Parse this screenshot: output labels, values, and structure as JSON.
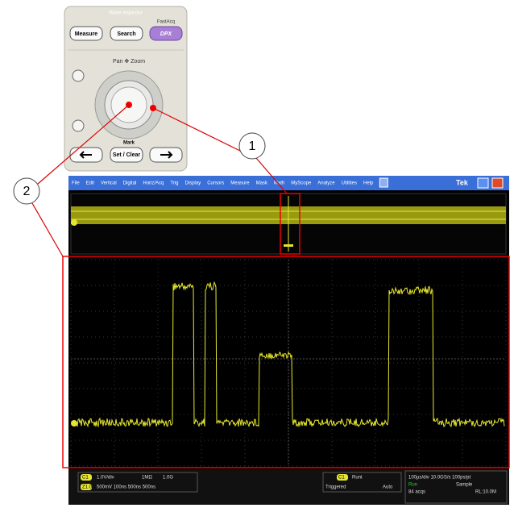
{
  "panel": {
    "title": "Wave Inspector",
    "fastacq": "FastAcq",
    "buttons": [
      "Measure",
      "Search",
      "DPX"
    ],
    "pan_zoom": "Pan ✥ Zoom",
    "mark": "Mark",
    "set_clear": "Set / Clear"
  },
  "callouts": [
    "1",
    "2"
  ],
  "menu": {
    "items": [
      "File",
      "Edit",
      "Vertical",
      "Digital",
      "Horiz/Acq",
      "Trig",
      "Display",
      "Cursors",
      "Measure",
      "Mask",
      "Math",
      "MyScope",
      "Analyze",
      "Utilities",
      "Help"
    ],
    "brand": "Tek"
  },
  "status": {
    "ch1": "C1",
    "ch1_scale": "1.0V/div",
    "ch1_imp": "1MΩ",
    "ch1_bw": "1.0G",
    "zoom": "Z1.0",
    "zoom_values": "500mV  100ns  500ns  500ns",
    "trig_ch": "C1",
    "trig_type": "Runt",
    "trig_state": "Triggered",
    "trig_mode": "Auto",
    "horiz": "100µs/div  10.0GS/s     100ps/pt",
    "run": "Run",
    "mode": "Sample",
    "acqs": "84 acqs",
    "rl": "RL:10.0M"
  }
}
